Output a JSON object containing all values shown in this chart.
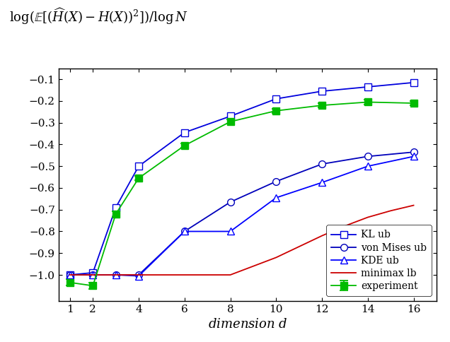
{
  "xlabel": "dimension $d$",
  "xlim": [
    0.5,
    17.0
  ],
  "ylim": [
    -1.12,
    -0.05
  ],
  "xticks": [
    1,
    2,
    4,
    6,
    8,
    10,
    12,
    14,
    16
  ],
  "yticks": [
    -1.0,
    -0.9,
    -0.8,
    -0.7,
    -0.6,
    -0.5,
    -0.4,
    -0.3,
    -0.2,
    -0.1
  ],
  "kl_ub_x": [
    1,
    2,
    3,
    4,
    6,
    8,
    10,
    12,
    14,
    16
  ],
  "kl_ub_y": [
    -1.0,
    -0.99,
    -0.69,
    -0.5,
    -0.345,
    -0.27,
    -0.19,
    -0.155,
    -0.135,
    -0.115
  ],
  "experiment_x": [
    1,
    2,
    3,
    4,
    6,
    8,
    10,
    12,
    14,
    16
  ],
  "experiment_y": [
    -1.035,
    -1.05,
    -0.72,
    -0.555,
    -0.405,
    -0.295,
    -0.245,
    -0.22,
    -0.205,
    -0.21
  ],
  "experiment_yerr_lo": [
    0.015,
    0.015,
    0.012,
    0.01,
    0.01,
    0.01,
    0.01,
    0.01,
    0.01,
    0.01
  ],
  "experiment_yerr_hi": [
    0.015,
    0.015,
    0.012,
    0.01,
    0.01,
    0.01,
    0.01,
    0.01,
    0.01,
    0.01
  ],
  "von_mises_x": [
    1,
    2,
    3,
    4,
    6,
    8,
    10,
    12,
    14,
    16
  ],
  "von_mises_y": [
    -1.0,
    -1.0,
    -1.0,
    -1.0,
    -0.8,
    -0.665,
    -0.57,
    -0.49,
    -0.455,
    -0.435
  ],
  "kde_x": [
    1,
    2,
    3,
    4,
    6,
    8,
    10,
    12,
    14,
    16
  ],
  "kde_y": [
    -1.0,
    -1.0,
    -1.0,
    -1.005,
    -0.8,
    -0.8,
    -0.645,
    -0.575,
    -0.5,
    -0.455
  ],
  "minimax_lb_x": [
    1,
    2,
    3,
    4,
    5,
    6,
    7,
    8,
    9,
    10,
    11,
    12,
    13,
    14,
    15,
    16
  ],
  "minimax_lb_y": [
    -1.0,
    -1.0,
    -1.0,
    -1.0,
    -1.0,
    -1.0,
    -1.0,
    -1.0,
    -0.96,
    -0.92,
    -0.87,
    -0.82,
    -0.775,
    -0.735,
    -0.705,
    -0.68
  ],
  "kl_color": "#0000dd",
  "experiment_color": "#00bb00",
  "von_mises_color": "#0000bb",
  "kde_color": "#0000ff",
  "minimax_color": "#cc0000",
  "background_color": "#ffffff"
}
